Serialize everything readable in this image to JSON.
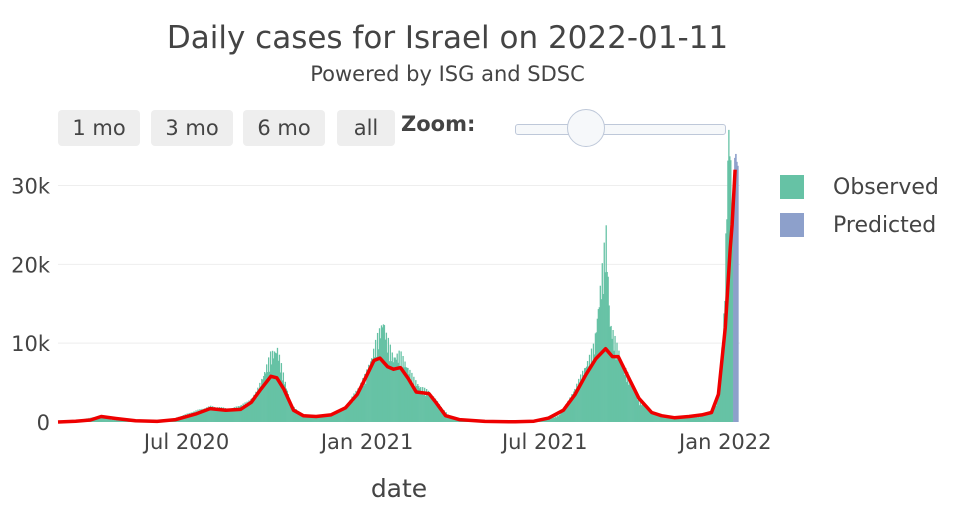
{
  "title": "Daily cases for Israel on 2022-01-11",
  "subtitle": "Powered by ISG and SDSC",
  "range_buttons": [
    "1 mo",
    "3 mo",
    "6 mo",
    "all"
  ],
  "zoom_label": "Zoom:",
  "zoom_level": 0.34,
  "colors": {
    "observed": "#66c2a5",
    "predicted": "#8da0cb",
    "smoothed": "#ee0000",
    "grid": "#eeeeee"
  },
  "chart_data": {
    "type": "bar",
    "title": "Daily cases for Israel on 2022-01-11",
    "xlabel": "date",
    "ylabel": "",
    "ylim": [
      0,
      34500
    ],
    "x_range": [
      "2020-02-21",
      "2022-01-16"
    ],
    "x_ticks": [
      {
        "date": "2020-07-01",
        "label": "Jul 2020"
      },
      {
        "date": "2021-01-01",
        "label": "Jan 2021"
      },
      {
        "date": "2021-07-01",
        "label": "Jul 2021"
      },
      {
        "date": "2022-01-01",
        "label": "Jan 2022"
      }
    ],
    "y_ticks": [
      {
        "value": 0,
        "label": "0"
      },
      {
        "value": 10000,
        "label": "10k"
      },
      {
        "value": 20000,
        "label": "20k"
      },
      {
        "value": 30000,
        "label": "30k"
      }
    ],
    "legend": [
      "Observed",
      "Predicted"
    ],
    "legend_position": "right",
    "series": [
      {
        "name": "Observed",
        "type": "bar",
        "points": [
          [
            "2020-02-21",
            0
          ],
          [
            "2020-03-05",
            30
          ],
          [
            "2020-03-20",
            400
          ],
          [
            "2020-04-02",
            650
          ],
          [
            "2020-04-15",
            300
          ],
          [
            "2020-05-01",
            150
          ],
          [
            "2020-05-20",
            50
          ],
          [
            "2020-06-10",
            150
          ],
          [
            "2020-06-25",
            700
          ],
          [
            "2020-07-10",
            1300
          ],
          [
            "2020-07-25",
            1800
          ],
          [
            "2020-08-15",
            1500
          ],
          [
            "2020-09-01",
            2300
          ],
          [
            "2020-09-10",
            3500
          ],
          [
            "2020-09-17",
            5500
          ],
          [
            "2020-09-24",
            7800
          ],
          [
            "2020-10-01",
            8500
          ],
          [
            "2020-10-08",
            5000
          ],
          [
            "2020-10-15",
            2000
          ],
          [
            "2020-10-25",
            900
          ],
          [
            "2020-11-10",
            700
          ],
          [
            "2020-11-25",
            900
          ],
          [
            "2020-12-10",
            1800
          ],
          [
            "2020-12-20",
            3500
          ],
          [
            "2020-12-30",
            5500
          ],
          [
            "2021-01-05",
            7500
          ],
          [
            "2021-01-10",
            9500
          ],
          [
            "2021-01-17",
            11800
          ],
          [
            "2021-01-20",
            10000
          ],
          [
            "2021-01-27",
            7500
          ],
          [
            "2021-02-03",
            8000
          ],
          [
            "2021-02-10",
            6500
          ],
          [
            "2021-02-17",
            5000
          ],
          [
            "2021-02-24",
            4000
          ],
          [
            "2021-03-05",
            3500
          ],
          [
            "2021-03-15",
            2000
          ],
          [
            "2021-03-25",
            700
          ],
          [
            "2021-04-10",
            300
          ],
          [
            "2021-05-01",
            100
          ],
          [
            "2021-06-01",
            20
          ],
          [
            "2021-06-20",
            150
          ],
          [
            "2021-07-05",
            400
          ],
          [
            "2021-07-15",
            800
          ],
          [
            "2021-07-25",
            2500
          ],
          [
            "2021-08-05",
            5000
          ],
          [
            "2021-08-15",
            7500
          ],
          [
            "2021-08-20",
            9000
          ],
          [
            "2021-08-27",
            16500
          ],
          [
            "2021-09-01",
            22000
          ],
          [
            "2021-09-05",
            11500
          ],
          [
            "2021-09-10",
            9500
          ],
          [
            "2021-09-17",
            7000
          ],
          [
            "2021-09-25",
            5000
          ],
          [
            "2021-10-05",
            2500
          ],
          [
            "2021-10-20",
            1000
          ],
          [
            "2021-11-01",
            600
          ],
          [
            "2021-11-15",
            500
          ],
          [
            "2021-12-01",
            600
          ],
          [
            "2021-12-15",
            1000
          ],
          [
            "2021-12-22",
            2000
          ],
          [
            "2021-12-26",
            4500
          ],
          [
            "2021-12-30",
            12000
          ],
          [
            "2022-01-04",
            35000
          ],
          [
            "2022-01-08",
            25000
          ],
          [
            "2022-01-11",
            34500
          ]
        ]
      },
      {
        "name": "Predicted",
        "type": "bar",
        "points": [
          [
            "2022-01-09",
            29000
          ],
          [
            "2022-01-10",
            33500
          ],
          [
            "2022-01-11",
            34000
          ],
          [
            "2022-01-12",
            33000
          ],
          [
            "2022-01-13",
            32500
          ]
        ]
      },
      {
        "name": "Smoothed",
        "type": "line",
        "points": [
          [
            "2020-02-21",
            0
          ],
          [
            "2020-03-10",
            100
          ],
          [
            "2020-03-25",
            250
          ],
          [
            "2020-04-05",
            700
          ],
          [
            "2020-04-20",
            450
          ],
          [
            "2020-05-10",
            150
          ],
          [
            "2020-06-01",
            80
          ],
          [
            "2020-06-20",
            300
          ],
          [
            "2020-07-10",
            1000
          ],
          [
            "2020-07-25",
            1700
          ],
          [
            "2020-08-10",
            1500
          ],
          [
            "2020-08-25",
            1600
          ],
          [
            "2020-09-05",
            2500
          ],
          [
            "2020-09-15",
            4200
          ],
          [
            "2020-09-25",
            5800
          ],
          [
            "2020-10-01",
            5600
          ],
          [
            "2020-10-08",
            4200
          ],
          [
            "2020-10-18",
            1500
          ],
          [
            "2020-10-28",
            800
          ],
          [
            "2020-11-10",
            700
          ],
          [
            "2020-11-25",
            900
          ],
          [
            "2020-12-10",
            1800
          ],
          [
            "2020-12-22",
            3500
          ],
          [
            "2021-01-01",
            6000
          ],
          [
            "2021-01-08",
            7800
          ],
          [
            "2021-01-14",
            8100
          ],
          [
            "2021-01-22",
            7000
          ],
          [
            "2021-01-28",
            6700
          ],
          [
            "2021-02-04",
            6900
          ],
          [
            "2021-02-12",
            5500
          ],
          [
            "2021-02-20",
            3800
          ],
          [
            "2021-03-05",
            3600
          ],
          [
            "2021-03-12",
            2500
          ],
          [
            "2021-03-22",
            800
          ],
          [
            "2021-04-05",
            300
          ],
          [
            "2021-05-01",
            80
          ],
          [
            "2021-06-01",
            20
          ],
          [
            "2021-06-20",
            100
          ],
          [
            "2021-07-05",
            500
          ],
          [
            "2021-07-20",
            1500
          ],
          [
            "2021-08-01",
            3500
          ],
          [
            "2021-08-12",
            6000
          ],
          [
            "2021-08-22",
            8000
          ],
          [
            "2021-09-01",
            9300
          ],
          [
            "2021-09-08",
            8300
          ],
          [
            "2021-09-14",
            8300
          ],
          [
            "2021-09-25",
            5500
          ],
          [
            "2021-10-05",
            3000
          ],
          [
            "2021-10-18",
            1200
          ],
          [
            "2021-10-28",
            800
          ],
          [
            "2021-11-10",
            550
          ],
          [
            "2021-11-25",
            700
          ],
          [
            "2021-12-08",
            900
          ],
          [
            "2021-12-18",
            1200
          ],
          [
            "2021-12-25",
            3500
          ],
          [
            "2022-01-01",
            12000
          ],
          [
            "2022-01-06",
            22000
          ],
          [
            "2022-01-08",
            25000
          ],
          [
            "2022-01-11",
            32000
          ]
        ]
      }
    ]
  }
}
